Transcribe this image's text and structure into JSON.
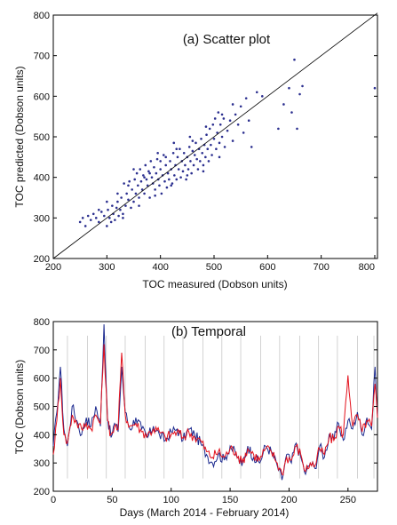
{
  "chart_data": [
    {
      "type": "scatter",
      "title": "(a) Scatter plot",
      "xlabel": "TOC measured (Dobson units)",
      "ylabel": "TOC predicted (Dobson units)",
      "xlim": [
        200,
        805
      ],
      "ylim": [
        200,
        800
      ],
      "xticks": [
        "200",
        "300",
        "400",
        "500",
        "600",
        "700",
        "800"
      ],
      "yticks": [
        "200",
        "300",
        "400",
        "500",
        "600",
        "700",
        "800"
      ],
      "grid": false,
      "colors": {
        "points": "#2b2f8f",
        "reference_line": "#000000"
      },
      "reference_line": {
        "from": [
          200,
          200
        ],
        "to": [
          805,
          805
        ]
      },
      "points": [
        [
          250,
          290
        ],
        [
          255,
          300
        ],
        [
          260,
          280
        ],
        [
          265,
          305
        ],
        [
          270,
          295
        ],
        [
          275,
          310
        ],
        [
          280,
          300
        ],
        [
          285,
          290
        ],
        [
          290,
          315
        ],
        [
          295,
          305
        ],
        [
          300,
          280
        ],
        [
          302,
          320
        ],
        [
          305,
          300
        ],
        [
          308,
          290
        ],
        [
          310,
          330
        ],
        [
          312,
          310
        ],
        [
          315,
          295
        ],
        [
          318,
          325
        ],
        [
          320,
          340
        ],
        [
          322,
          305
        ],
        [
          325,
          320
        ],
        [
          327,
          350
        ],
        [
          330,
          310
        ],
        [
          332,
          385
        ],
        [
          335,
          330
        ],
        [
          337,
          360
        ],
        [
          340,
          345
        ],
        [
          342,
          390
        ],
        [
          345,
          325
        ],
        [
          347,
          370
        ],
        [
          350,
          340
        ],
        [
          352,
          395
        ],
        [
          354,
          360
        ],
        [
          356,
          410
        ],
        [
          358,
          380
        ],
        [
          360,
          350
        ],
        [
          362,
          420
        ],
        [
          364,
          390
        ],
        [
          366,
          370
        ],
        [
          368,
          405
        ],
        [
          370,
          360
        ],
        [
          372,
          430
        ],
        [
          374,
          395
        ],
        [
          376,
          380
        ],
        [
          378,
          415
        ],
        [
          380,
          350
        ],
        [
          382,
          440
        ],
        [
          384,
          400
        ],
        [
          386,
          385
        ],
        [
          388,
          425
        ],
        [
          390,
          370
        ],
        [
          392,
          410
        ],
        [
          394,
          445
        ],
        [
          396,
          395
        ],
        [
          398,
          380
        ],
        [
          400,
          420
        ],
        [
          402,
          360
        ],
        [
          404,
          405
        ],
        [
          406,
          455
        ],
        [
          408,
          390
        ],
        [
          410,
          430
        ],
        [
          412,
          375
        ],
        [
          414,
          410
        ],
        [
          416,
          395
        ],
        [
          418,
          440
        ],
        [
          420,
          420
        ],
        [
          422,
          385
        ],
        [
          424,
          460
        ],
        [
          426,
          405
        ],
        [
          428,
          430
        ],
        [
          430,
          395
        ],
        [
          432,
          450
        ],
        [
          434,
          420
        ],
        [
          436,
          470
        ],
        [
          438,
          400
        ],
        [
          440,
          440
        ],
        [
          442,
          415
        ],
        [
          444,
          460
        ],
        [
          446,
          430
        ],
        [
          448,
          395
        ],
        [
          450,
          450
        ],
        [
          452,
          420
        ],
        [
          454,
          475
        ],
        [
          456,
          440
        ],
        [
          458,
          410
        ],
        [
          460,
          465
        ],
        [
          462,
          430
        ],
        [
          464,
          455
        ],
        [
          466,
          485
        ],
        [
          468,
          445
        ],
        [
          470,
          420
        ],
        [
          472,
          470
        ],
        [
          474,
          440
        ],
        [
          476,
          495
        ],
        [
          478,
          460
        ],
        [
          480,
          430
        ],
        [
          482,
          480
        ],
        [
          484,
          450
        ],
        [
          486,
          505
        ],
        [
          488,
          470
        ],
        [
          490,
          440
        ],
        [
          492,
          520
        ],
        [
          494,
          480
        ],
        [
          496,
          455
        ],
        [
          498,
          530
        ],
        [
          500,
          495
        ],
        [
          502,
          545
        ],
        [
          504,
          470
        ],
        [
          506,
          510
        ],
        [
          508,
          560
        ],
        [
          510,
          485
        ],
        [
          512,
          530
        ],
        [
          515,
          500
        ],
        [
          518,
          545
        ],
        [
          520,
          475
        ],
        [
          525,
          515
        ],
        [
          530,
          540
        ],
        [
          535,
          490
        ],
        [
          540,
          555
        ],
        [
          545,
          530
        ],
        [
          550,
          575
        ],
        [
          555,
          510
        ],
        [
          560,
          595
        ],
        [
          565,
          540
        ],
        [
          570,
          475
        ],
        [
          580,
          610
        ],
        [
          590,
          600
        ],
        [
          620,
          520
        ],
        [
          630,
          580
        ],
        [
          640,
          620
        ],
        [
          645,
          560
        ],
        [
          650,
          690
        ],
        [
          655,
          520
        ],
        [
          660,
          605
        ],
        [
          665,
          625
        ],
        [
          800,
          620
        ],
        [
          330,
          300
        ],
        [
          360,
          330
        ],
        [
          390,
          355
        ],
        [
          420,
          380
        ],
        [
          450,
          405
        ],
        [
          480,
          415
        ],
        [
          510,
          450
        ],
        [
          380,
          410
        ],
        [
          410,
          450
        ],
        [
          340,
          380
        ],
        [
          370,
          400
        ],
        [
          400,
          440
        ],
        [
          430,
          470
        ],
        [
          460,
          490
        ],
        [
          320,
          360
        ],
        [
          300,
          340
        ],
        [
          285,
          320
        ],
        [
          350,
          420
        ],
        [
          395,
          460
        ],
        [
          425,
          485
        ],
        [
          455,
          500
        ],
        [
          485,
          525
        ],
        [
          515,
          555
        ],
        [
          535,
          580
        ]
      ]
    },
    {
      "type": "line",
      "title": "(b) Temporal",
      "xlabel": "Days (March 2014 - February 2014)",
      "ylabel": "TOC (Dobson units)",
      "xlim": [
        0,
        275
      ],
      "ylim": [
        200,
        800
      ],
      "xticks": [
        "0",
        "50",
        "100",
        "150",
        "200",
        "250"
      ],
      "yticks": [
        "200",
        "300",
        "400",
        "500",
        "600",
        "700",
        "800"
      ],
      "vertical_markers": [
        12,
        29,
        45,
        61,
        78,
        94,
        110,
        127,
        143,
        159,
        176,
        192,
        209,
        225,
        241,
        258,
        272
      ],
      "colors": {
        "measured": "#1c2a8f",
        "predicted": "#e3101b",
        "markers": "#c8c8c8"
      },
      "series": [
        {
          "key": "measured",
          "anchors": [
            [
              0,
              360
            ],
            [
              3,
              480
            ],
            [
              6,
              640
            ],
            [
              9,
              420
            ],
            [
              12,
              360
            ],
            [
              16,
              500
            ],
            [
              20,
              450
            ],
            [
              24,
              400
            ],
            [
              28,
              460
            ],
            [
              32,
              430
            ],
            [
              36,
              500
            ],
            [
              40,
              430
            ],
            [
              43,
              790
            ],
            [
              46,
              460
            ],
            [
              49,
              390
            ],
            [
              52,
              440
            ],
            [
              55,
              410
            ],
            [
              58,
              640
            ],
            [
              61,
              480
            ],
            [
              65,
              420
            ],
            [
              70,
              460
            ],
            [
              75,
              420
            ],
            [
              80,
              390
            ],
            [
              85,
              430
            ],
            [
              90,
              400
            ],
            [
              95,
              380
            ],
            [
              100,
              410
            ],
            [
              105,
              420
            ],
            [
              110,
              380
            ],
            [
              115,
              420
            ],
            [
              120,
              400
            ],
            [
              125,
              370
            ],
            [
              130,
              330
            ],
            [
              135,
              300
            ],
            [
              140,
              330
            ],
            [
              145,
              310
            ],
            [
              150,
              360
            ],
            [
              155,
              330
            ],
            [
              160,
              290
            ],
            [
              165,
              360
            ],
            [
              170,
              320
            ],
            [
              175,
              300
            ],
            [
              180,
              360
            ],
            [
              185,
              340
            ],
            [
              190,
              290
            ],
            [
              194,
              240
            ],
            [
              198,
              330
            ],
            [
              202,
              300
            ],
            [
              206,
              370
            ],
            [
              210,
              320
            ],
            [
              214,
              260
            ],
            [
              218,
              300
            ],
            [
              222,
              280
            ],
            [
              226,
              360
            ],
            [
              230,
              320
            ],
            [
              234,
              400
            ],
            [
              238,
              380
            ],
            [
              242,
              440
            ],
            [
              246,
              380
            ],
            [
              250,
              450
            ],
            [
              254,
              420
            ],
            [
              258,
              480
            ],
            [
              262,
              400
            ],
            [
              266,
              460
            ],
            [
              270,
              420
            ],
            [
              273,
              640
            ],
            [
              275,
              470
            ]
          ]
        },
        {
          "key": "predicted",
          "anchors": [
            [
              0,
              330
            ],
            [
              3,
              450
            ],
            [
              6,
              600
            ],
            [
              9,
              400
            ],
            [
              12,
              370
            ],
            [
              16,
              470
            ],
            [
              20,
              440
            ],
            [
              24,
              420
            ],
            [
              28,
              440
            ],
            [
              32,
              420
            ],
            [
              36,
              470
            ],
            [
              40,
              440
            ],
            [
              43,
              720
            ],
            [
              46,
              450
            ],
            [
              49,
              400
            ],
            [
              52,
              430
            ],
            [
              55,
              420
            ],
            [
              58,
              690
            ],
            [
              61,
              470
            ],
            [
              65,
              430
            ],
            [
              70,
              440
            ],
            [
              75,
              410
            ],
            [
              80,
              400
            ],
            [
              85,
              420
            ],
            [
              90,
              410
            ],
            [
              95,
              390
            ],
            [
              100,
              400
            ],
            [
              105,
              410
            ],
            [
              110,
              390
            ],
            [
              115,
              410
            ],
            [
              120,
              390
            ],
            [
              125,
              380
            ],
            [
              130,
              340
            ],
            [
              135,
              320
            ],
            [
              140,
              340
            ],
            [
              145,
              320
            ],
            [
              150,
              350
            ],
            [
              155,
              340
            ],
            [
              160,
              300
            ],
            [
              165,
              350
            ],
            [
              170,
              330
            ],
            [
              175,
              310
            ],
            [
              180,
              350
            ],
            [
              185,
              340
            ],
            [
              190,
              300
            ],
            [
              194,
              260
            ],
            [
              198,
              320
            ],
            [
              202,
              310
            ],
            [
              206,
              360
            ],
            [
              210,
              330
            ],
            [
              214,
              270
            ],
            [
              218,
              300
            ],
            [
              222,
              290
            ],
            [
              226,
              350
            ],
            [
              230,
              330
            ],
            [
              234,
              390
            ],
            [
              238,
              380
            ],
            [
              242,
              430
            ],
            [
              246,
              400
            ],
            [
              250,
              610
            ],
            [
              254,
              430
            ],
            [
              258,
              470
            ],
            [
              262,
              410
            ],
            [
              266,
              450
            ],
            [
              270,
              430
            ],
            [
              273,
              580
            ],
            [
              275,
              460
            ]
          ]
        }
      ]
    }
  ]
}
